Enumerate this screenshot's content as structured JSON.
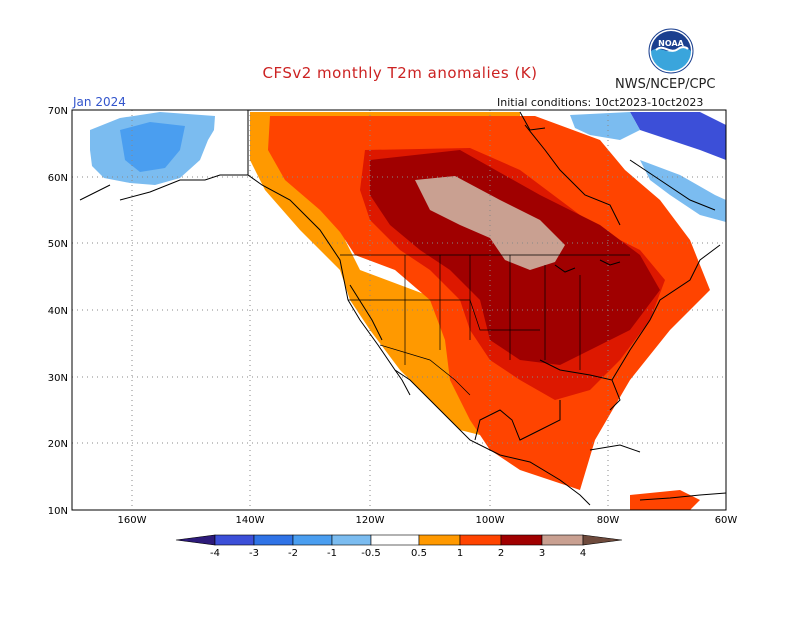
{
  "header": {
    "title": "CFSv2 monthly T2m anomalies (K)",
    "agency": "NWS/NCEP/CPC",
    "logo_text": "NOAA",
    "month": "Jan 2024",
    "initial_conditions": "Initial conditions: 10ct2023-10ct2023"
  },
  "map": {
    "lat_labels": [
      "70N",
      "60N",
      "50N",
      "40N",
      "30N",
      "20N",
      "10N"
    ],
    "lon_labels": [
      "160W",
      "140W",
      "120W",
      "100W",
      "80W",
      "60W"
    ]
  },
  "legend": {
    "labels": [
      "-4",
      "-3",
      "-2",
      "-1",
      "-0.5",
      "0.5",
      "1",
      "2",
      "3",
      "4"
    ],
    "colors": [
      "#3b1f9e",
      "#3c4fd8",
      "#2f73e6",
      "#4a9ef0",
      "#7bbcf0",
      "#ffffff",
      "#ff9900",
      "#ff4400",
      "#dd1800",
      "#a00000",
      "#c9a091",
      "#6e4a3c"
    ]
  },
  "colors": {
    "title": "#cc2222",
    "month": "#3355cc",
    "plus_0_5": "#ff9900",
    "plus_1": "#ff4400",
    "plus_2": "#dd1800",
    "plus_3": "#a00000",
    "plus_4": "#c9a091",
    "minus_0_5": "#7bbcf0",
    "minus_1": "#4a9ef0",
    "minus_3": "#3c4fd8"
  }
}
